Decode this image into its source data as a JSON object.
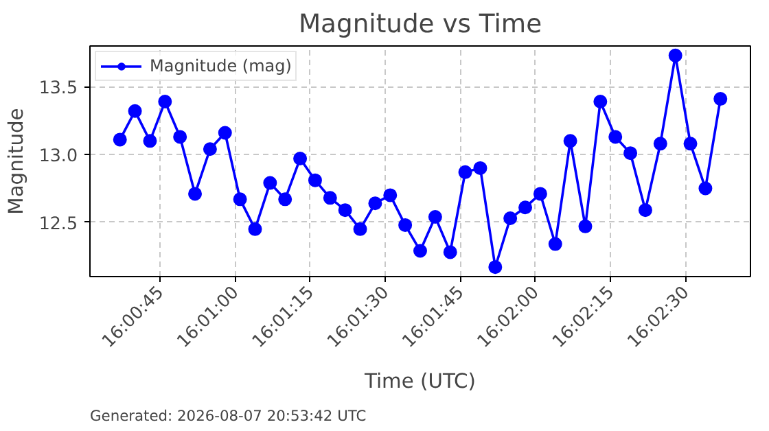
{
  "chart_data": {
    "type": "line",
    "title": "Magnitude vs Time",
    "xlabel": "Time (UTC)",
    "ylabel": "Magnitude",
    "x": [
      16.010278,
      16.011111,
      16.011944,
      16.012778,
      16.013611,
      16.014444,
      16.015278,
      16.016111,
      16.016944,
      16.017778,
      16.018611,
      16.019444,
      16.020278,
      16.021111,
      16.021944,
      16.022778,
      16.023611,
      16.024444,
      16.025278,
      16.026111,
      16.026944,
      16.027778,
      16.028611,
      16.029444,
      16.030278,
      16.031111,
      16.031944,
      16.032778,
      16.033611,
      16.034444,
      16.035278,
      16.036111,
      16.036944,
      16.037778,
      16.038611,
      16.039444,
      16.040278,
      16.041111,
      16.041944,
      16.042778,
      16.043611
    ],
    "series": [
      {
        "name": "Magnitude (mag)",
        "color": "#0000ff",
        "values": [
          13.11,
          13.32,
          13.1,
          13.39,
          13.13,
          12.71,
          13.04,
          13.16,
          12.67,
          12.45,
          12.79,
          12.67,
          12.97,
          12.81,
          12.68,
          12.59,
          12.45,
          12.64,
          12.7,
          12.48,
          12.29,
          12.54,
          12.28,
          12.87,
          12.9,
          12.17,
          12.53,
          12.61,
          12.71,
          12.34,
          13.1,
          12.47,
          13.39,
          13.13,
          13.01,
          12.59,
          13.08,
          13.73,
          13.08,
          12.75,
          13.41
        ]
      }
    ],
    "xlim": [
      16.008611,
      16.045278
    ],
    "xticks": [
      {
        "value": 16.0125,
        "label": "16:00:45"
      },
      {
        "value": 16.016667,
        "label": "16:01:00"
      },
      {
        "value": 16.020833,
        "label": "16:01:15"
      },
      {
        "value": 16.025,
        "label": "16:01:30"
      },
      {
        "value": 16.029167,
        "label": "16:01:45"
      },
      {
        "value": 16.033333,
        "label": "16:02:00"
      },
      {
        "value": 16.0375,
        "label": "16:02:15"
      },
      {
        "value": 16.041667,
        "label": "16:02:30"
      }
    ],
    "ylim": [
      12.1,
      13.8
    ],
    "yticks": [
      {
        "value": 12.5,
        "label": "12.5"
      },
      {
        "value": 13.0,
        "label": "13.0"
      },
      {
        "value": 13.5,
        "label": "13.5"
      }
    ],
    "grid": true,
    "legend": "top left",
    "marker": "circle",
    "line_style": "solid",
    "annotations": [
      "Generated: 2026-08-07 20:53:42 UTC"
    ]
  }
}
